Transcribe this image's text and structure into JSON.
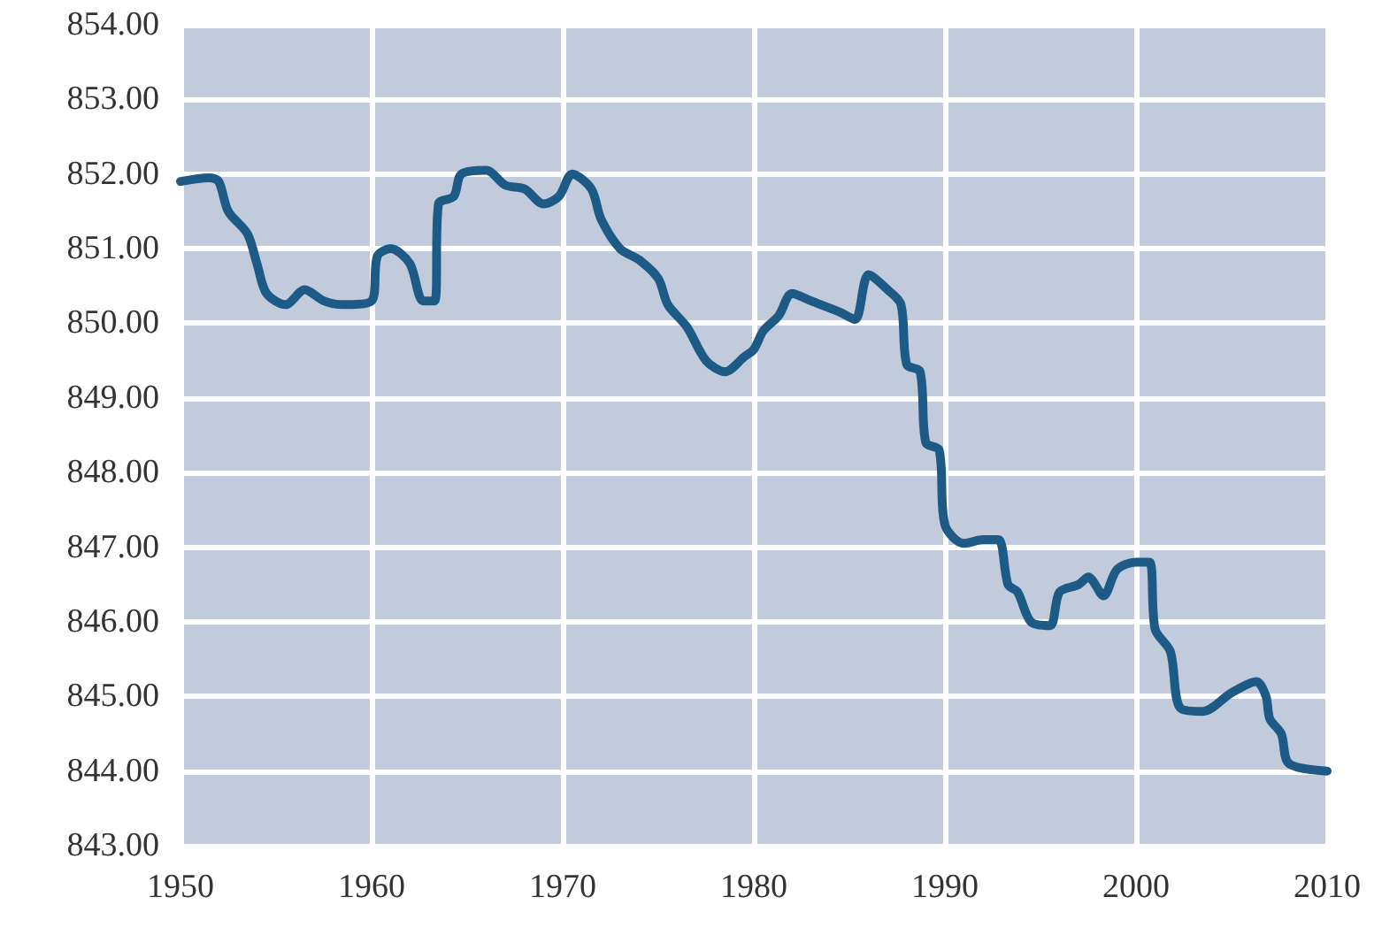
{
  "chart_data": {
    "type": "line",
    "x": [
      1950,
      1951.5,
      1952,
      1952.5,
      1953.5,
      1954,
      1954.5,
      1955.5,
      1956.5,
      1957.5,
      1958.5,
      1960,
      1960.3,
      1961,
      1962,
      1962.7,
      1963.3,
      1963.5,
      1964.3,
      1964.7,
      1966,
      1967,
      1968,
      1969,
      1969.8,
      1970.5,
      1971.5,
      1972,
      1973,
      1974,
      1975,
      1975.5,
      1976.5,
      1977.5,
      1978.5,
      1979.5,
      1980,
      1980.5,
      1981.3,
      1982,
      1983,
      1984.5,
      1985.3,
      1986,
      1987,
      1987.7,
      1988,
      1988.7,
      1989,
      1989.7,
      1990,
      1991,
      1992,
      1992.8,
      1993.3,
      1993.8,
      1994.5,
      1995.5,
      1996,
      1997,
      1997.5,
      1998.3,
      1999,
      2000,
      2000.7,
      2001,
      2001.8,
      2002.3,
      2003.5,
      2005,
      2006.3,
      2006.8,
      2007,
      2007.6,
      2008,
      2010
    ],
    "series": [
      {
        "color": "#1d5a86",
        "values": [
          851.9,
          851.95,
          851.9,
          851.5,
          851.2,
          850.8,
          850.4,
          850.25,
          850.45,
          850.3,
          850.25,
          850.3,
          850.9,
          851.0,
          850.8,
          850.3,
          850.3,
          851.6,
          851.7,
          852.0,
          852.05,
          851.85,
          851.8,
          851.6,
          851.7,
          852.0,
          851.8,
          851.4,
          851.0,
          850.85,
          850.6,
          850.25,
          849.95,
          849.5,
          849.35,
          849.55,
          849.65,
          849.9,
          850.1,
          850.4,
          850.3,
          850.15,
          850.05,
          850.65,
          850.45,
          850.25,
          849.45,
          849.35,
          848.4,
          848.3,
          847.3,
          847.05,
          847.1,
          847.1,
          846.5,
          846.4,
          846.0,
          845.95,
          846.4,
          846.5,
          846.6,
          846.35,
          846.7,
          846.8,
          846.8,
          845.9,
          845.6,
          844.85,
          844.8,
          845.05,
          845.2,
          845.0,
          844.7,
          844.5,
          844.1,
          844.0
        ]
      }
    ],
    "xlim": [
      1950,
      2010
    ],
    "xticks": [
      1950,
      1960,
      1970,
      1980,
      1990,
      2000,
      2010
    ],
    "ylim": [
      843,
      854
    ],
    "yticks": [
      {
        "value": 843,
        "label": "843.00"
      },
      {
        "value": 844,
        "label": "844.00"
      },
      {
        "value": 845,
        "label": "845.00"
      },
      {
        "value": 846,
        "label": "846.00"
      },
      {
        "value": 847,
        "label": "847.00"
      },
      {
        "value": 848,
        "label": "848.00"
      },
      {
        "value": 849,
        "label": "849.00"
      },
      {
        "value": 850,
        "label": "850.00"
      },
      {
        "value": 851,
        "label": "851.00"
      },
      {
        "value": 852,
        "label": "852.00"
      },
      {
        "value": 853,
        "label": "853.00"
      },
      {
        "value": 854,
        "label": "854.00"
      }
    ],
    "grid": true,
    "marker": "none",
    "line_style": "solid"
  }
}
